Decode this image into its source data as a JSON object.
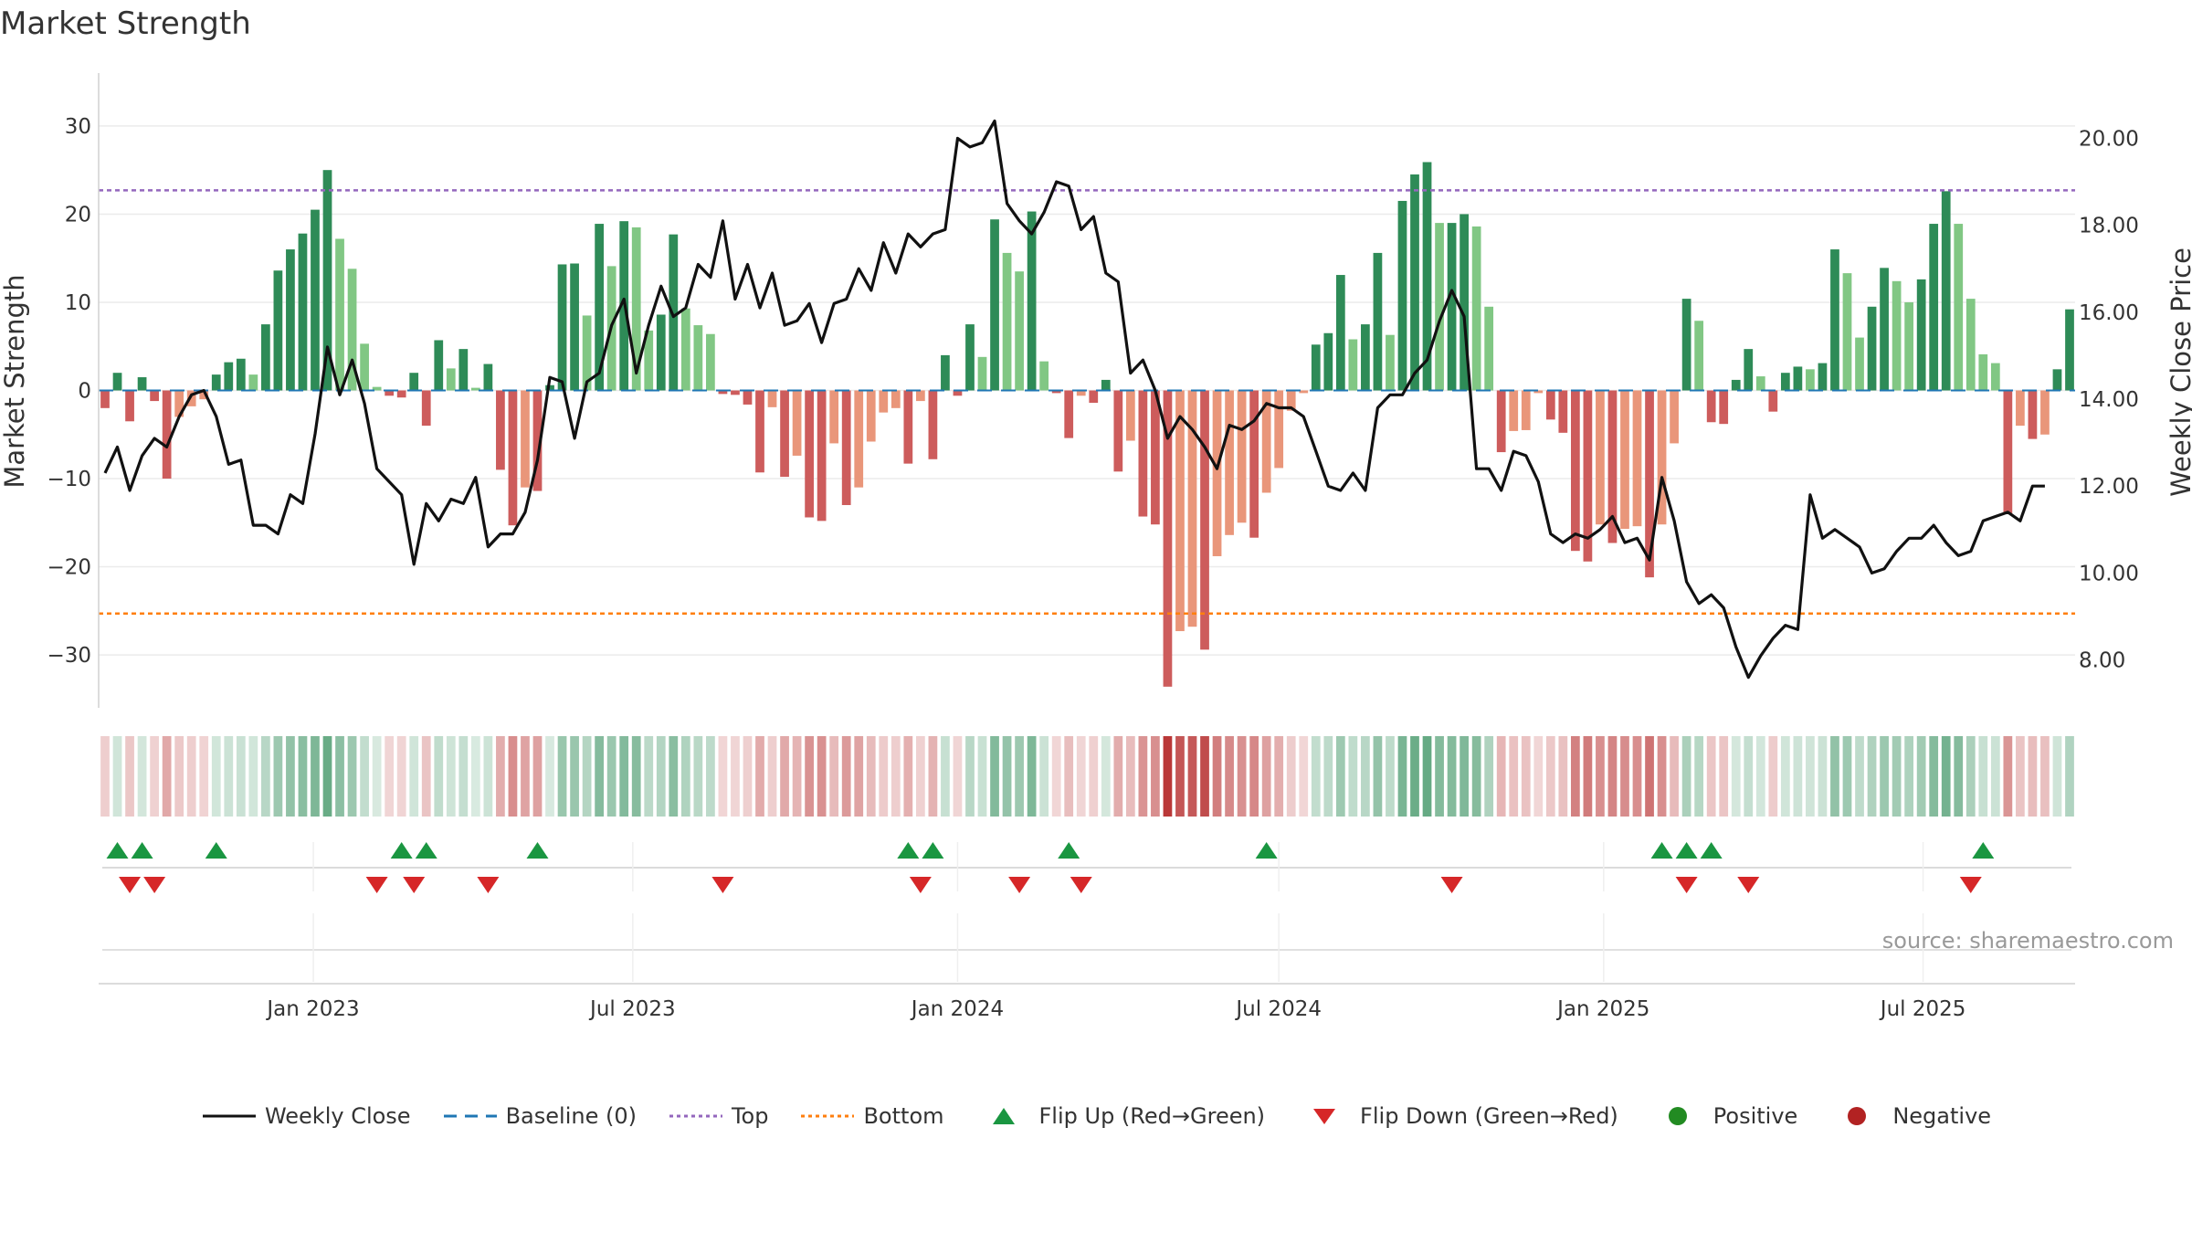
{
  "title": "Market Strength",
  "source": "source: sharemaestro.com",
  "legend": {
    "weekly_close": "Weekly Close",
    "baseline": "Baseline (0)",
    "top": "Top",
    "bottom": "Bottom",
    "flip_up": "Flip Up (Red→Green)",
    "flip_down": "Flip Down (Green→Red)",
    "positive": "Positive",
    "negative": "Negative"
  },
  "colors": {
    "positive_dark": "#2e8b57",
    "positive_light": "#81c784",
    "negative_dark": "#cd5c5c",
    "negative_light": "#e9967a",
    "price_line": "#111111",
    "baseline": "#1f77b4",
    "top": "#9467bd",
    "bottom": "#ff7f0e",
    "flip_up": "#1a9641",
    "flip_down": "#d62728",
    "legend_positive": "#228b22",
    "legend_negative": "#b22222"
  },
  "chart_data": {
    "type": "bar",
    "x_start": "2022-09-05",
    "x_step_days": 7,
    "xticks": [
      "Jan 2023",
      "Jul 2023",
      "Jan 2024",
      "Jul 2024",
      "Jan 2025",
      "Jul 2025"
    ],
    "xtick_dates": [
      "2023-01-01",
      "2023-07-01",
      "2024-01-01",
      "2024-07-01",
      "2025-01-01",
      "2025-07-01"
    ],
    "y_left": {
      "label": "Market Strength",
      "ylim": [
        -36,
        36
      ],
      "ticks": [
        -30,
        -20,
        -10,
        0,
        10,
        20,
        30
      ],
      "tick_labels": [
        "−30",
        "−20",
        "−10",
        "0",
        "10",
        "20",
        "30"
      ]
    },
    "y_right": {
      "label": "Weekly Close Price",
      "ylim": [
        6.9,
        21.5
      ],
      "ticks": [
        8,
        10,
        12,
        14,
        16,
        18,
        20
      ],
      "tick_labels": [
        "8.00",
        "10.00",
        "12.00",
        "14.00",
        "16.00",
        "18.00",
        "20.00"
      ]
    },
    "top_level": 22.7,
    "bottom_level": -25.3,
    "series": [
      {
        "name": "Market Strength",
        "kind": "bar",
        "values": [
          -2,
          2,
          -3.5,
          1.5,
          -1.2,
          -10,
          -3,
          -1.8,
          -1,
          1.8,
          3.2,
          3.6,
          1.8,
          7.5,
          13.6,
          16,
          17.8,
          20.5,
          25,
          17.2,
          13.8,
          5.3,
          0.4,
          -0.6,
          -0.8,
          2,
          -4,
          5.7,
          2.5,
          4.7,
          0.3,
          3,
          -9,
          -15.3,
          -11,
          -11.4,
          0.6,
          14.3,
          14.4,
          8.5,
          18.9,
          14.1,
          19.2,
          18.5,
          6.8,
          8.6,
          17.7,
          9.3,
          7.4,
          6.4,
          -0.4,
          -0.5,
          -1.6,
          -9.3,
          -1.9,
          -9.8,
          -7.4,
          -14.4,
          -14.8,
          -6,
          -13,
          -11,
          -5.8,
          -2.5,
          -2,
          -8.3,
          -1.2,
          -7.8,
          4,
          -0.6,
          7.5,
          3.8,
          19.4,
          15.6,
          13.5,
          20.3,
          3.3,
          -0.3,
          -5.4,
          -0.6,
          -1.4,
          1.2,
          -9.2,
          -5.7,
          -14.3,
          -15.2,
          -33.6,
          -27.3,
          -26.8,
          -29.4,
          -18.8,
          -16.4,
          -15,
          -16.7,
          -11.6,
          -8.8,
          -2.3,
          -0.3,
          5.2,
          6.5,
          13.1,
          5.8,
          7.5,
          15.6,
          6.3,
          21.5,
          24.5,
          25.9,
          19,
          19,
          20,
          18.6,
          9.5,
          -7,
          -4.6,
          -4.5,
          -0.3,
          -3.3,
          -4.8,
          -18.2,
          -19.4,
          -15.2,
          -17.3,
          -15.7,
          -15.4,
          -21.2,
          -15.2,
          -6,
          10.4,
          7.9,
          -3.6,
          -3.8,
          1.2,
          4.7,
          1.6,
          -2.4,
          2,
          2.7,
          2.4,
          3.1,
          16,
          13.3,
          6,
          9.5,
          13.9,
          12.4,
          10,
          12.6,
          18.9,
          22.6,
          18.9,
          10.4,
          4.1,
          3.1,
          -14,
          -4,
          -5.5,
          -5,
          2.4,
          9.2
        ]
      },
      {
        "name": "Weekly Close",
        "kind": "line",
        "values": [
          12.3,
          12.9,
          11.9,
          12.7,
          13.1,
          12.9,
          13.6,
          14.1,
          14.2,
          13.6,
          12.5,
          12.6,
          11.1,
          11.1,
          10.9,
          11.8,
          11.6,
          13.2,
          15.2,
          14.1,
          14.9,
          13.9,
          12.4,
          12.1,
          11.8,
          10.2,
          11.6,
          11.2,
          11.7,
          11.6,
          12.2,
          10.6,
          10.9,
          10.9,
          11.4,
          12.6,
          14.5,
          14.4,
          13.1,
          14.4,
          14.6,
          15.7,
          16.3,
          14.6,
          15.7,
          16.6,
          15.9,
          16.1,
          17.1,
          16.8,
          18.1,
          16.3,
          17.1,
          16.1,
          16.9,
          15.7,
          15.8,
          16.2,
          15.3,
          16.2,
          16.3,
          17.0,
          16.5,
          17.6,
          16.9,
          17.8,
          17.5,
          17.8,
          17.9,
          20.0,
          19.8,
          19.9,
          20.4,
          18.5,
          18.1,
          17.8,
          18.3,
          19.0,
          18.9,
          17.9,
          18.2,
          16.9,
          16.7,
          14.6,
          14.9,
          14.2,
          13.1,
          13.6,
          13.3,
          12.9,
          12.4,
          13.4,
          13.3,
          13.5,
          13.9,
          13.8,
          13.8,
          13.6,
          12.8,
          12.0,
          11.9,
          12.3,
          11.9,
          13.8,
          14.1,
          14.1,
          14.6,
          14.9,
          15.8,
          16.5,
          15.9,
          12.4,
          12.4,
          11.9,
          12.8,
          12.7,
          12.1,
          10.9,
          10.7,
          10.9,
          10.8,
          11.0,
          11.3,
          10.7,
          10.8,
          10.3,
          12.2,
          11.2,
          9.8,
          9.3,
          9.5,
          9.2,
          8.3,
          7.6,
          8.1,
          8.5,
          8.8,
          8.7,
          11.8,
          10.8,
          11.0,
          10.8,
          10.6,
          10.0,
          10.1,
          10.5,
          10.8,
          10.8,
          11.1,
          10.7,
          10.4,
          10.5,
          11.2,
          11.3,
          11.4,
          11.2,
          12.0,
          12.0
        ]
      }
    ],
    "flip_up_indices": [
      1,
      3,
      9,
      24,
      26,
      35,
      65,
      67,
      78,
      94,
      126,
      128,
      130,
      152
    ],
    "flip_down_indices": [
      2,
      4,
      22,
      25,
      31,
      50,
      66,
      74,
      79,
      109,
      128,
      133,
      151
    ]
  }
}
